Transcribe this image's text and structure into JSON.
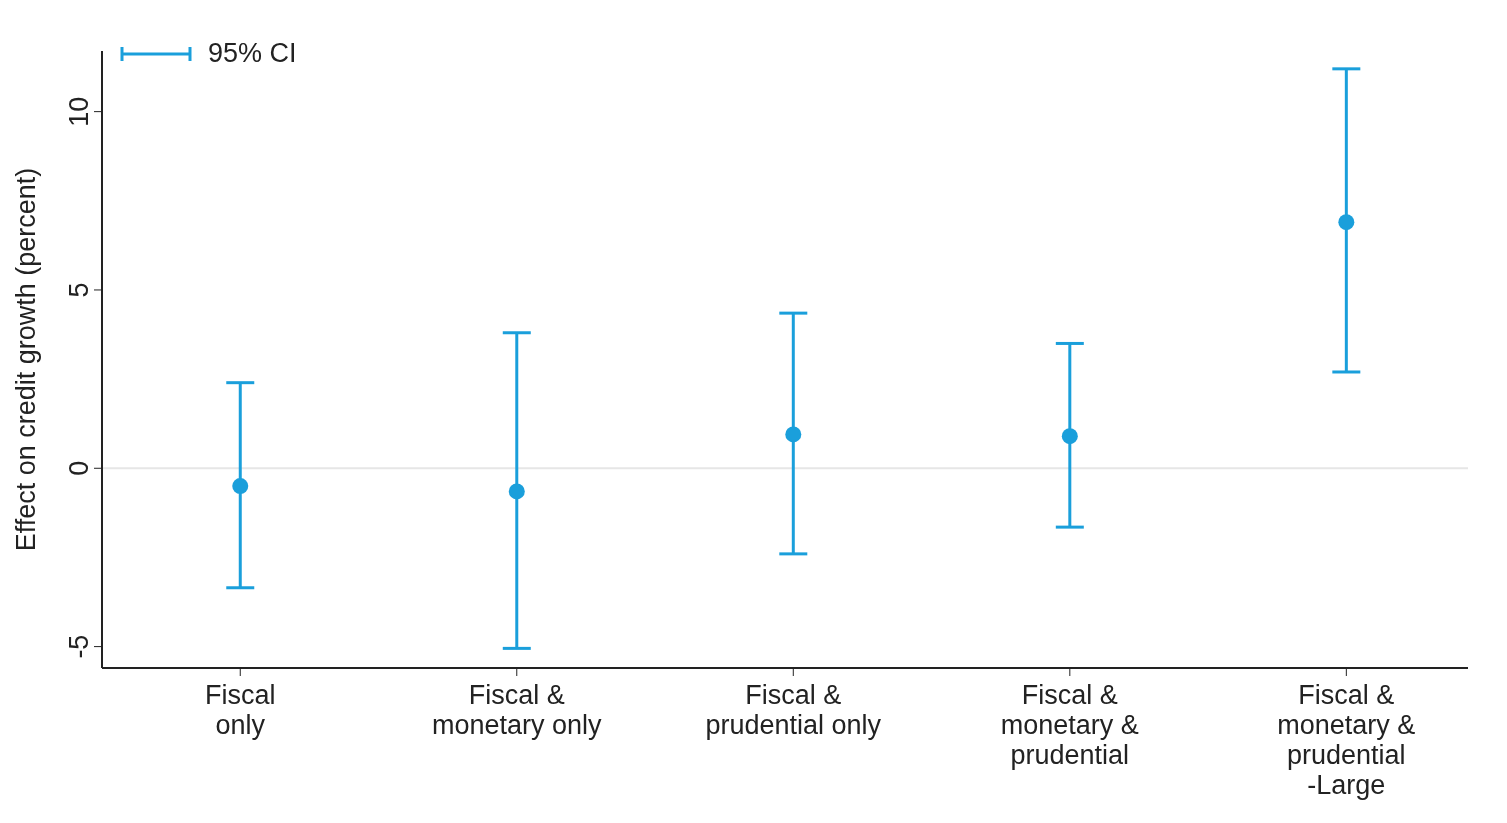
{
  "chart_data": {
    "type": "scatter",
    "ylabel": "Effect on credit growth (percent)",
    "categories": [
      "Fiscal\nonly",
      "Fiscal &\nmonetary only",
      "Fiscal &\nprudential only",
      "Fiscal &\nmonetary &\nprudential",
      "Fiscal &\nmonetary &\nprudential\n-Large"
    ],
    "series": [
      {
        "name": "95% CI",
        "color": "#1a9fdb",
        "values": [
          -0.5,
          -0.65,
          0.95,
          0.9,
          6.9
        ],
        "errors": [
          [
            -3.35,
            2.4
          ],
          [
            -5.05,
            3.8
          ],
          [
            -2.4,
            4.35
          ],
          [
            -1.65,
            3.5
          ],
          [
            2.7,
            11.2
          ]
        ]
      }
    ],
    "ylim": [
      -5.6,
      11.7
    ],
    "yticks": [
      -5,
      0,
      5,
      10
    ],
    "ref_lines": [
      {
        "axis": "y",
        "value": 0,
        "color": "#e6e6e6"
      }
    ],
    "legend": "top left",
    "marker": "circle",
    "grid": false
  }
}
